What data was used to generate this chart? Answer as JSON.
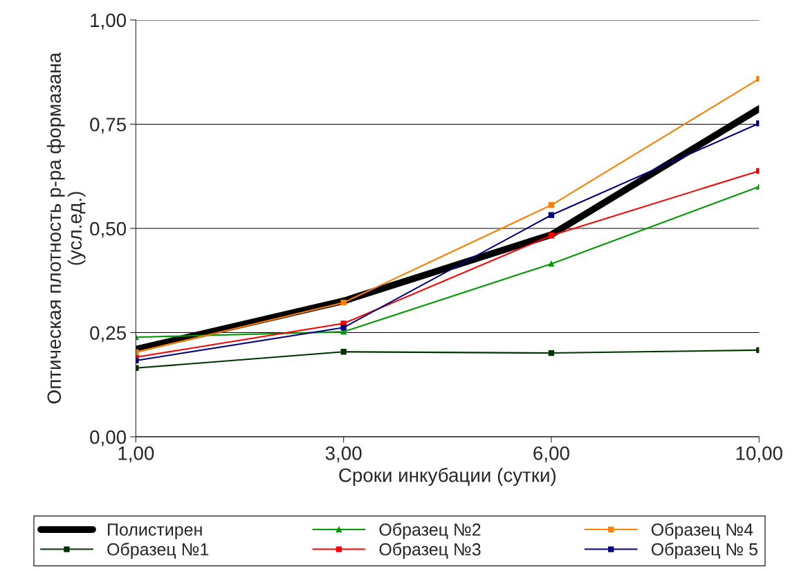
{
  "chart_data": {
    "type": "line",
    "xlabel": "Сроки инкубации (сутки)",
    "ylabel": "Оптическая плотность р-ра формазана\n(усл.ед.)",
    "categories": [
      "1,00",
      "3,00",
      "6,00",
      "10,00"
    ],
    "ylim": [
      0,
      1
    ],
    "yticks": [
      {
        "value": 0,
        "label": "0,00"
      },
      {
        "value": 0.25,
        "label": "0,25"
      },
      {
        "value": 0.5,
        "label": "0,50"
      },
      {
        "value": 0.75,
        "label": "0,75"
      },
      {
        "value": 1,
        "label": "1,00"
      }
    ],
    "grid": "y",
    "legend": "bottom",
    "series": [
      {
        "name": "Полистирен",
        "color": "#000000",
        "marker": "none",
        "values": [
          0.21,
          0.326,
          0.485,
          0.787
        ]
      },
      {
        "name": "Образец №1",
        "color": "#003300",
        "marker": "square",
        "values": [
          0.165,
          0.204,
          0.201,
          0.208
        ]
      },
      {
        "name": "Образец №2",
        "color": "#009900",
        "marker": "triangle",
        "values": [
          0.239,
          0.252,
          0.415,
          0.6
        ]
      },
      {
        "name": "Образец №3",
        "color": "#ff0000",
        "marker": "square",
        "values": [
          0.191,
          0.272,
          0.483,
          0.638
        ]
      },
      {
        "name": "Образец №4",
        "color": "#ff7f00",
        "marker": "square",
        "values": [
          0.203,
          0.322,
          0.556,
          0.859
        ]
      },
      {
        "name": "Образец № 5",
        "color": "#000080",
        "marker": "square",
        "values": [
          0.183,
          0.262,
          0.532,
          0.752
        ]
      }
    ]
  }
}
